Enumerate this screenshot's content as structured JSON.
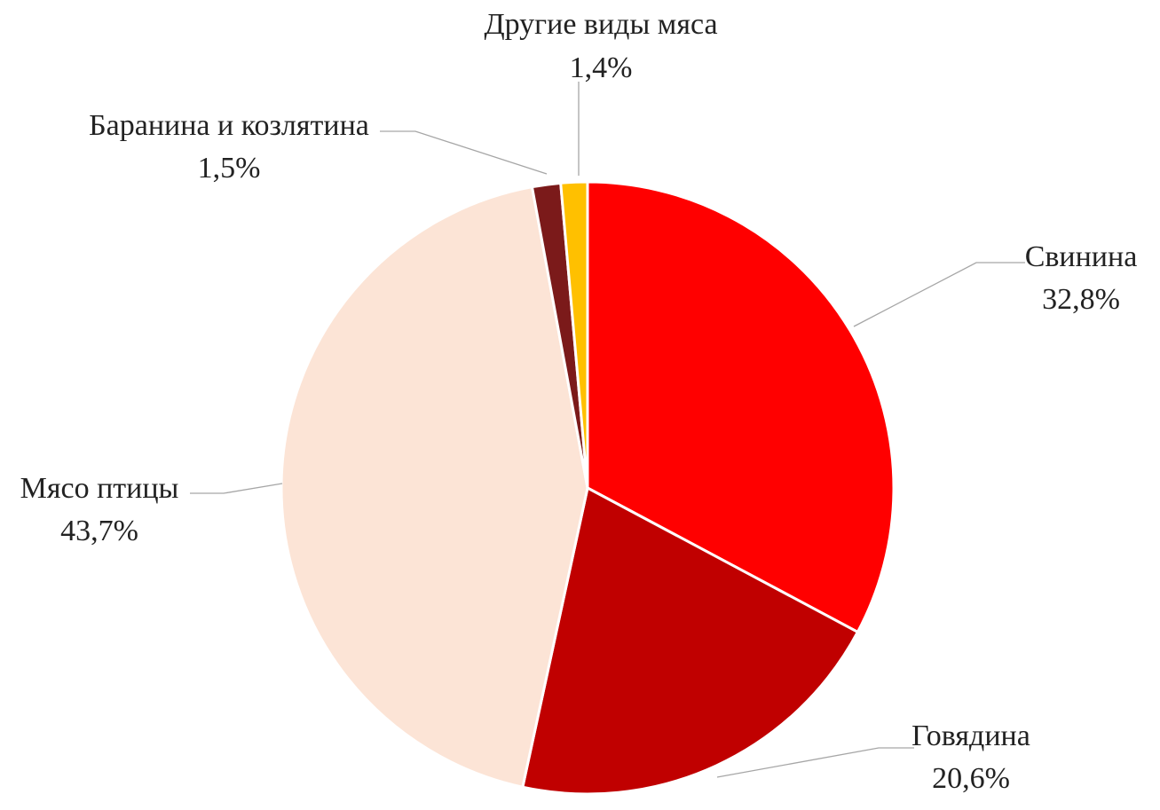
{
  "chart_data": {
    "type": "pie",
    "start": "12 o'clock",
    "direction": "clockwise",
    "slices": [
      {
        "name": "Свинина",
        "value": 32.8,
        "value_label": "32,8%",
        "color": "#ff0000"
      },
      {
        "name": "Говядина",
        "value": 20.6,
        "value_label": "20,6%",
        "color": "#c00000"
      },
      {
        "name": "Мясо птицы",
        "value": 43.7,
        "value_label": "43,7%",
        "color": "#fce4d6"
      },
      {
        "name": "Баранина и козлятина",
        "value": 1.5,
        "value_label": "1,5%",
        "color": "#7b1a1a"
      },
      {
        "name": "Другие виды мяса",
        "value": 1.4,
        "value_label": "1,4%",
        "color": "#ffc000"
      }
    ],
    "leader_line_color": "#a6a6a6",
    "text_color": "#222222"
  }
}
